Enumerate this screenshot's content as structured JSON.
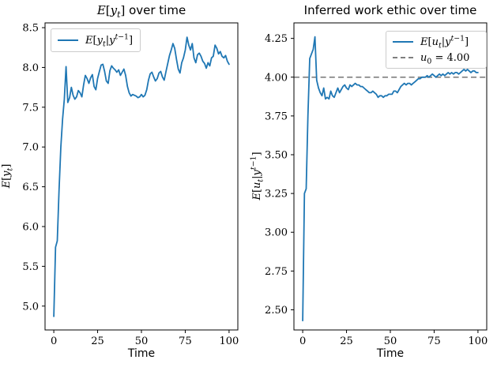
{
  "figure": {
    "background": "#ffffff",
    "accent_color": "#1f77b4",
    "reference_line_color": "#7f7f7f",
    "axis_color": "#000000"
  },
  "chart_data": [
    {
      "type": "line",
      "title_text": "E[y_t] over time",
      "title_html": "<span class='m'>E</span><span class='mu'>[</span><span class='m'>y</span><sub class='m'>t</sub><span class='mu'>]</span> over time",
      "xlabel": "Time",
      "ylabel_text": "E[y_t]",
      "ylabel_html": "<span class='m'>E</span><span class='mu'>[</span><span class='m'>y</span><sub class='m'>t</sub><span class='mu'>]</span>",
      "xlim": [
        -5,
        105
      ],
      "ylim": [
        4.7,
        8.56
      ],
      "grid": false,
      "x_ticks": [
        0,
        25,
        50,
        75,
        100
      ],
      "x_tick_labels": [
        "0",
        "25",
        "50",
        "75",
        "100"
      ],
      "y_ticks": [
        5.0,
        5.5,
        6.0,
        6.5,
        7.0,
        7.5,
        8.0,
        8.5
      ],
      "y_tick_labels": [
        "5.0",
        "5.5",
        "6.0",
        "6.5",
        "7.0",
        "7.5",
        "8.0",
        "8.5"
      ],
      "legend_position": "upper left",
      "legend": [
        {
          "label_text": "E[y_t|y^(t-1)]",
          "label_html": "<span class='m'>E</span><span class='mu'>[</span><span class='m'>y</span><sub class='m'>t</sub><span class='mu'>|</span><span class='m'>y</span><sup><span class='m'>t</span><span class='mu'>−1</span></sup><span class='mu'>]</span>",
          "color": "#1f77b4",
          "style": "solid"
        }
      ],
      "series": [
        {
          "name": "E[y_t|y^(t-1)]",
          "color": "#1f77b4",
          "x": [
            0,
            1,
            2,
            3,
            4,
            5,
            6,
            7,
            8,
            9,
            10,
            11,
            12,
            13,
            14,
            15,
            16,
            17,
            18,
            19,
            20,
            21,
            22,
            23,
            24,
            25,
            26,
            27,
            28,
            29,
            30,
            31,
            32,
            33,
            34,
            35,
            36,
            37,
            38,
            39,
            40,
            41,
            42,
            43,
            44,
            45,
            46,
            47,
            48,
            49,
            50,
            51,
            52,
            53,
            54,
            55,
            56,
            57,
            58,
            59,
            60,
            61,
            62,
            63,
            64,
            65,
            66,
            67,
            68,
            69,
            70,
            71,
            72,
            73,
            74,
            75,
            76,
            77,
            78,
            79,
            80,
            81,
            82,
            83,
            84,
            85,
            86,
            87,
            88,
            89,
            90,
            91,
            92,
            93,
            94,
            95,
            96,
            97,
            98,
            99,
            100
          ],
          "y": [
            4.87,
            5.74,
            5.82,
            6.45,
            7.0,
            7.35,
            7.6,
            8.01,
            7.56,
            7.62,
            7.75,
            7.65,
            7.6,
            7.63,
            7.71,
            7.68,
            7.63,
            7.78,
            7.9,
            7.86,
            7.8,
            7.87,
            7.91,
            7.76,
            7.72,
            7.86,
            7.95,
            8.03,
            8.04,
            7.95,
            7.83,
            7.8,
            7.96,
            8.02,
            7.99,
            7.97,
            7.94,
            7.97,
            7.9,
            7.94,
            7.98,
            7.9,
            7.76,
            7.68,
            7.64,
            7.66,
            7.65,
            7.64,
            7.62,
            7.63,
            7.66,
            7.63,
            7.65,
            7.72,
            7.84,
            7.92,
            7.94,
            7.88,
            7.83,
            7.86,
            7.93,
            7.95,
            7.88,
            7.84,
            7.95,
            8.05,
            8.15,
            8.22,
            8.3,
            8.24,
            8.1,
            7.98,
            7.93,
            8.06,
            8.12,
            8.22,
            8.38,
            8.28,
            8.22,
            8.3,
            8.12,
            8.06,
            8.16,
            8.18,
            8.14,
            8.08,
            8.05,
            7.99,
            8.06,
            8.02,
            8.12,
            8.14,
            8.28,
            8.24,
            8.17,
            8.2,
            8.14,
            8.12,
            8.15,
            8.08,
            8.04
          ]
        }
      ]
    },
    {
      "type": "line",
      "title_text": "Inferred work ethic over time",
      "title_html": "Inferred work ethic over time",
      "xlabel": "Time",
      "ylabel_text": "E[u_t|y^(t-1)]",
      "ylabel_html": "<span class='m'>E</span><span class='mu'>[</span><span class='m'>u</span><sub class='m'>t</sub><span class='mu'>|</span><span class='m'>y</span><sup><span class='m'>t</span><span class='mu'>−1</span></sup><span class='mu'>]</span>",
      "xlim": [
        -5,
        105
      ],
      "ylim": [
        2.37,
        4.35
      ],
      "grid": false,
      "x_ticks": [
        0,
        25,
        50,
        75,
        100
      ],
      "x_tick_labels": [
        "0",
        "25",
        "50",
        "75",
        "100"
      ],
      "y_ticks": [
        2.5,
        2.75,
        3.0,
        3.25,
        3.5,
        3.75,
        4.0,
        4.25
      ],
      "y_tick_labels": [
        "2.50",
        "2.75",
        "3.00",
        "3.25",
        "3.50",
        "3.75",
        "4.00",
        "4.25"
      ],
      "legend_position": "upper right",
      "legend": [
        {
          "label_text": "E[u_t|y^(t-1)]",
          "label_html": "<span class='m'>E</span><span class='mu'>[</span><span class='m'>u</span><sub class='m'>t</sub><span class='mu'>|</span><span class='m'>y</span><sup><span class='m'>t</span><span class='mu'>−1</span></sup><span class='mu'>]</span>",
          "color": "#1f77b4",
          "style": "solid"
        },
        {
          "label_text": "u_0 = 4.00",
          "label_html": "<span class='m'>u</span><sub class='mu'>0</sub><span class='mu'> = 4.00</span>",
          "color": "#7f7f7f",
          "style": "dashed"
        }
      ],
      "reference_line": {
        "y": 4.0,
        "color": "#7f7f7f",
        "style": "dashed",
        "label_text": "u_0 = 4.00"
      },
      "series": [
        {
          "name": "E[u_t|y^(t-1)]",
          "color": "#1f77b4",
          "x": [
            0,
            1,
            2,
            3,
            4,
            5,
            6,
            7,
            8,
            9,
            10,
            11,
            12,
            13,
            14,
            15,
            16,
            17,
            18,
            19,
            20,
            21,
            22,
            23,
            24,
            25,
            26,
            27,
            28,
            29,
            30,
            31,
            32,
            33,
            34,
            35,
            36,
            37,
            38,
            39,
            40,
            41,
            42,
            43,
            44,
            45,
            46,
            47,
            48,
            49,
            50,
            51,
            52,
            53,
            54,
            55,
            56,
            57,
            58,
            59,
            60,
            61,
            62,
            63,
            64,
            65,
            66,
            67,
            68,
            69,
            70,
            71,
            72,
            73,
            74,
            75,
            76,
            77,
            78,
            79,
            80,
            81,
            82,
            83,
            84,
            85,
            86,
            87,
            88,
            89,
            90,
            91,
            92,
            93,
            94,
            95,
            96,
            97,
            98,
            99,
            100
          ],
          "y": [
            2.43,
            3.25,
            3.28,
            3.75,
            4.12,
            4.15,
            4.18,
            4.26,
            3.98,
            3.93,
            3.9,
            3.88,
            3.93,
            3.86,
            3.87,
            3.86,
            3.91,
            3.88,
            3.87,
            3.9,
            3.93,
            3.9,
            3.92,
            3.94,
            3.95,
            3.93,
            3.92,
            3.95,
            3.94,
            3.95,
            3.96,
            3.95,
            3.95,
            3.94,
            3.94,
            3.93,
            3.92,
            3.91,
            3.9,
            3.9,
            3.91,
            3.9,
            3.89,
            3.87,
            3.88,
            3.88,
            3.87,
            3.88,
            3.88,
            3.89,
            3.89,
            3.89,
            3.91,
            3.91,
            3.9,
            3.92,
            3.94,
            3.95,
            3.96,
            3.95,
            3.96,
            3.96,
            3.95,
            3.96,
            3.97,
            3.98,
            3.99,
            3.99,
            4.0,
            4.0,
            4.0,
            4.01,
            4.0,
            4.01,
            4.02,
            4.01,
            4.0,
            4.01,
            4.02,
            4.01,
            4.02,
            4.01,
            4.02,
            4.03,
            4.02,
            4.03,
            4.02,
            4.03,
            4.03,
            4.02,
            4.03,
            4.04,
            4.05,
            4.04,
            4.05,
            4.04,
            4.03,
            4.04,
            4.04,
            4.03,
            4.03
          ]
        }
      ]
    }
  ]
}
